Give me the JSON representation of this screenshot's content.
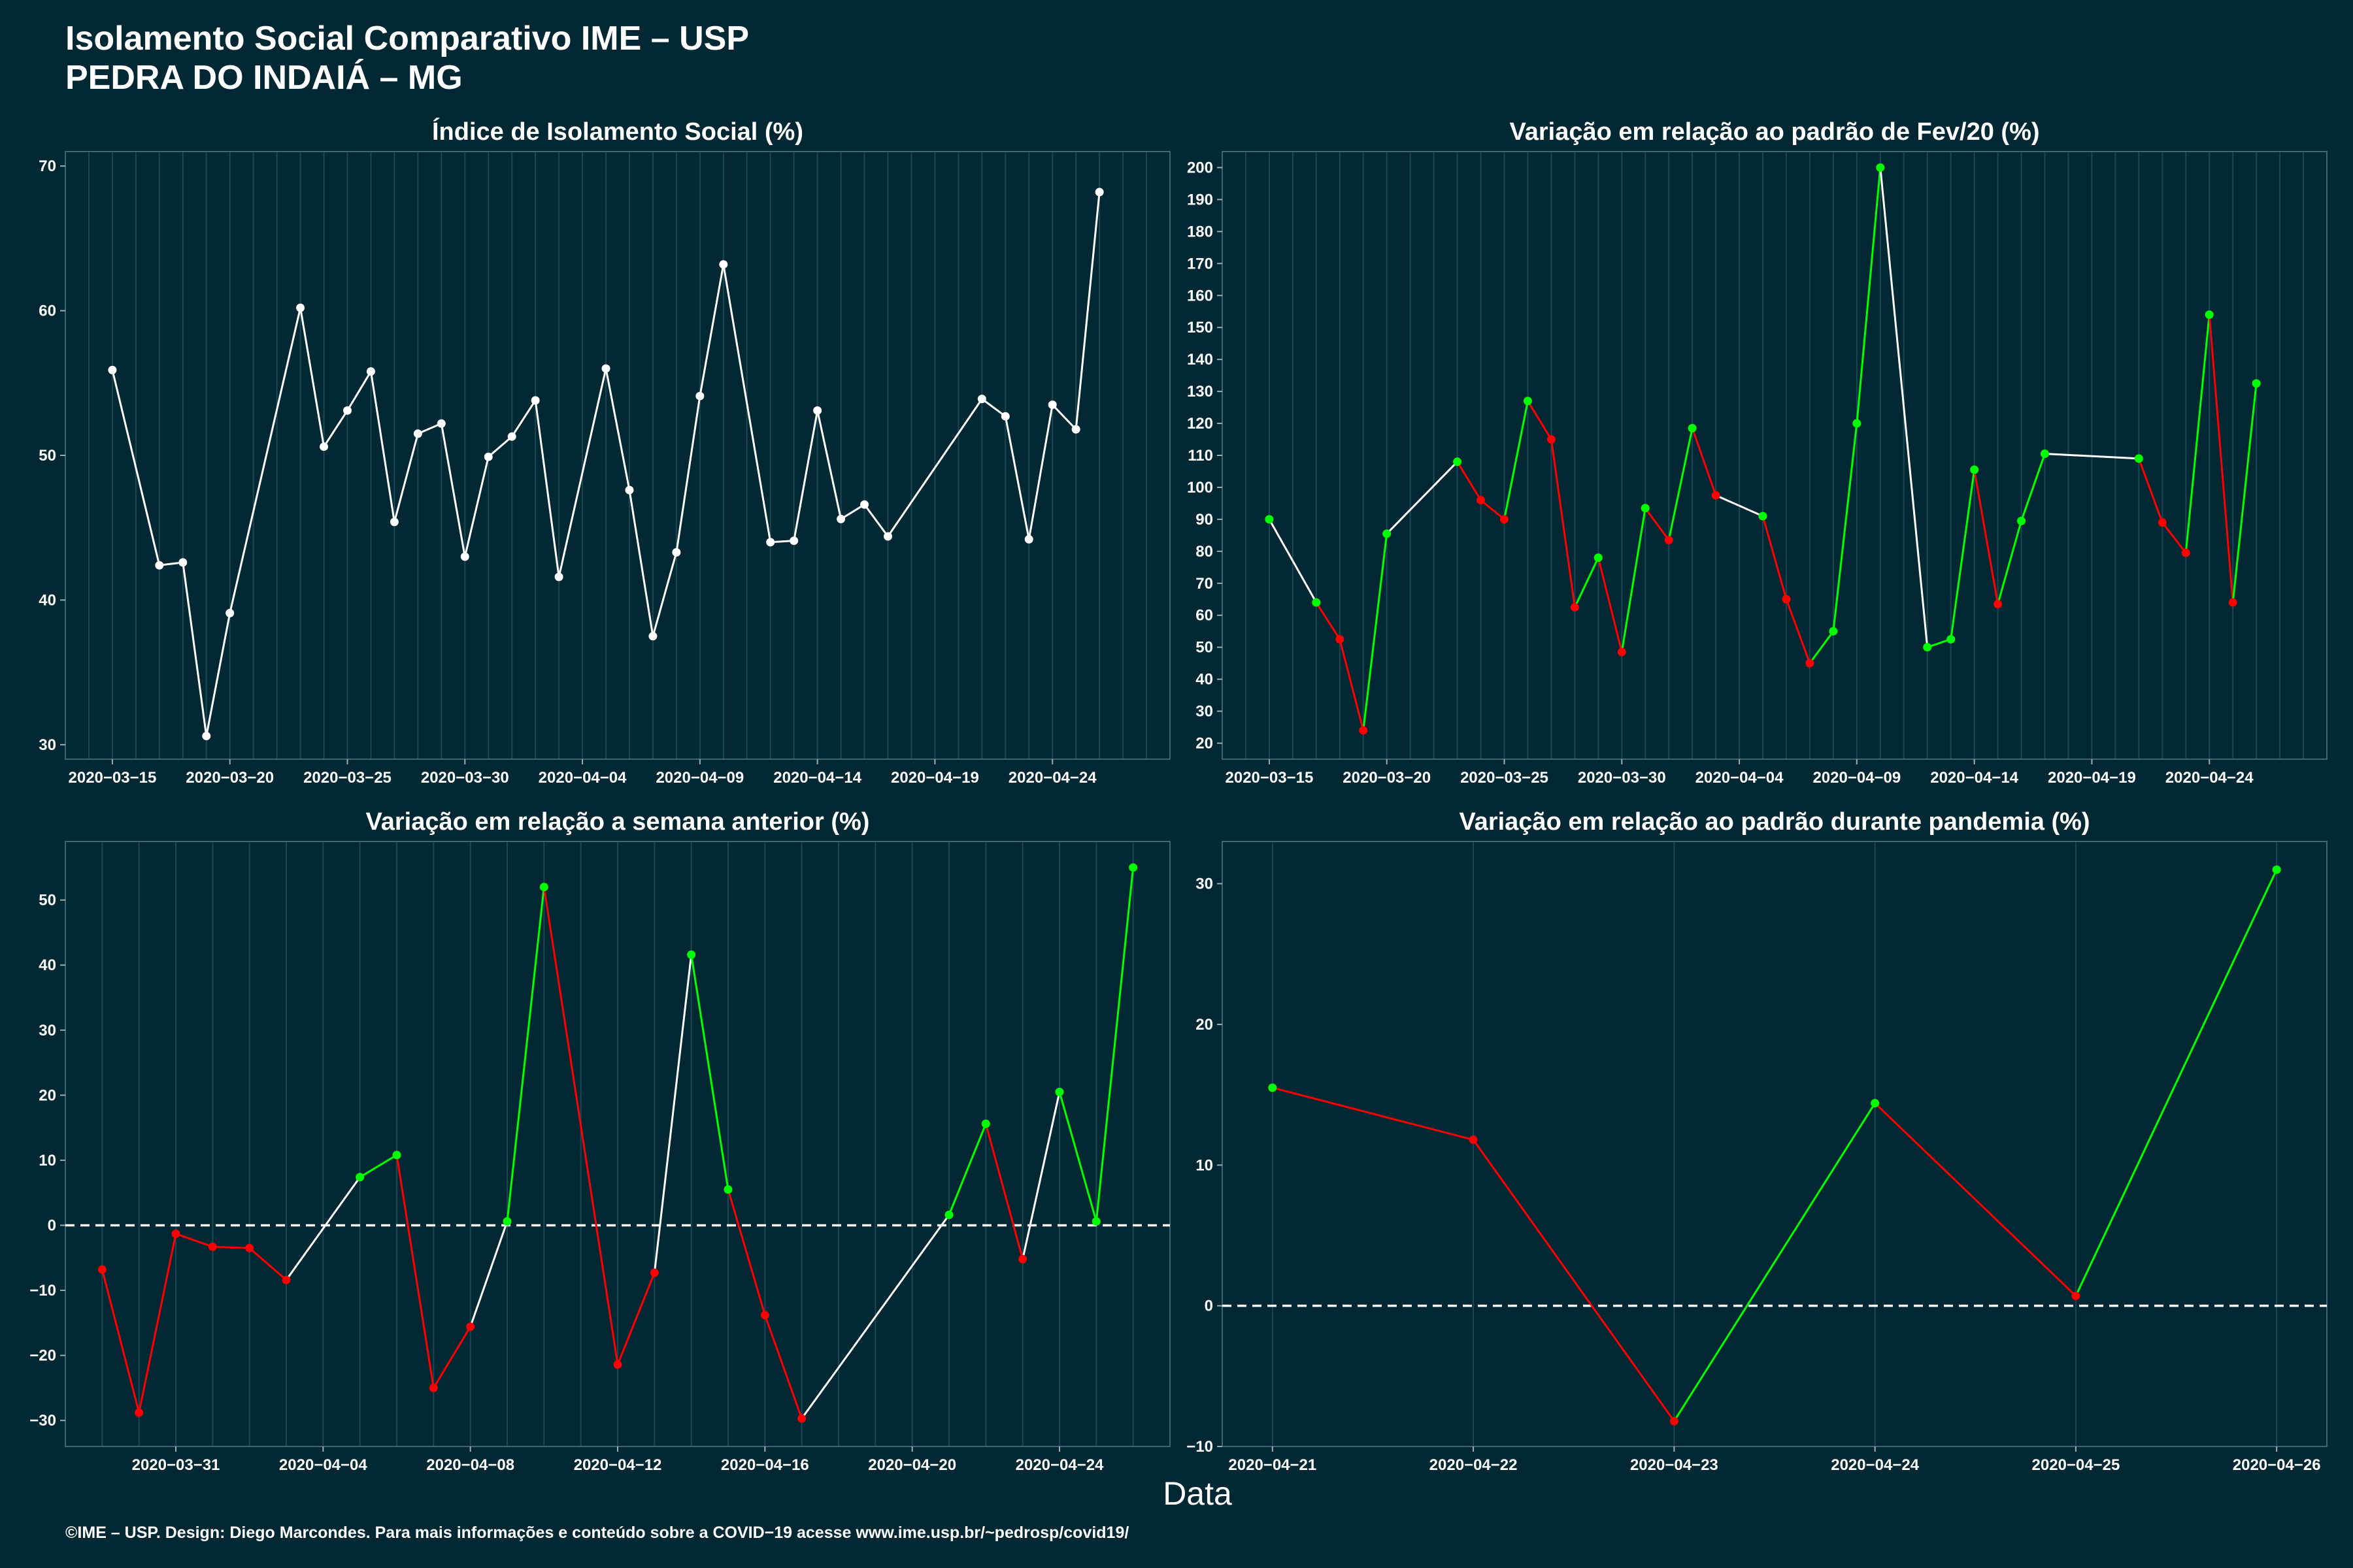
{
  "header": {
    "title_line1": "Isolamento Social Comparativo IME – USP",
    "title_line2": "PEDRA DO INDAIÁ – MG"
  },
  "x_axis_label": "Data",
  "footer": "©IME – USP. Design: Diego Marcondes. Para mais informações e conteúdo sobre a COVID−19 acesse www.ime.usp.br/~pedrosp/covid19/",
  "colors": {
    "background": "#022834",
    "neutral": "#ffffff",
    "positive": "#00ff00",
    "negative": "#ff0000",
    "grid": "#1c4652"
  },
  "chart_data": [
    {
      "id": "isolamento",
      "type": "line",
      "title": "Índice de Isolamento Social (%)",
      "xlabel": "Data",
      "ylabel": "",
      "x_is_date": true,
      "xlim": [
        "2020-03-13",
        "2020-04-29"
      ],
      "ylim": [
        29,
        71
      ],
      "xticks": [
        "2020-03-15",
        "2020-03-20",
        "2020-03-25",
        "2020-03-30",
        "2020-04-04",
        "2020-04-09",
        "2020-04-14",
        "2020-04-19",
        "2020-04-24"
      ],
      "yticks": [
        30,
        40,
        50,
        60,
        70
      ],
      "grid": true,
      "color_mode": "neutral",
      "points": [
        [
          "2020-03-15",
          55.9
        ],
        [
          "2020-03-17",
          42.4
        ],
        [
          "2020-03-18",
          42.6
        ],
        [
          "2020-03-19",
          30.6
        ],
        [
          "2020-03-20",
          39.1
        ],
        [
          "2020-03-23",
          60.2
        ],
        [
          "2020-03-24",
          50.6
        ],
        [
          "2020-03-25",
          53.1
        ],
        [
          "2020-03-26",
          55.8
        ],
        [
          "2020-03-27",
          45.4
        ],
        [
          "2020-03-28",
          51.5
        ],
        [
          "2020-03-29",
          52.2
        ],
        [
          "2020-03-30",
          43.0
        ],
        [
          "2020-03-31",
          49.9
        ],
        [
          "2020-04-01",
          51.3
        ],
        [
          "2020-04-02",
          53.8
        ],
        [
          "2020-04-03",
          41.6
        ],
        [
          "2020-04-05",
          56.0
        ],
        [
          "2020-04-06",
          47.6
        ],
        [
          "2020-04-07",
          37.5
        ],
        [
          "2020-04-08",
          43.3
        ],
        [
          "2020-04-09",
          54.1
        ],
        [
          "2020-04-10",
          63.2
        ],
        [
          "2020-04-12",
          44.0
        ],
        [
          "2020-04-13",
          44.1
        ],
        [
          "2020-04-14",
          53.1
        ],
        [
          "2020-04-15",
          45.6
        ],
        [
          "2020-04-16",
          46.6
        ],
        [
          "2020-04-17",
          44.4
        ],
        [
          "2020-04-21",
          53.9
        ],
        [
          "2020-04-22",
          52.7
        ],
        [
          "2020-04-23",
          44.2
        ],
        [
          "2020-04-24",
          53.5
        ],
        [
          "2020-04-25",
          51.8
        ],
        [
          "2020-04-26",
          68.2
        ]
      ]
    },
    {
      "id": "fev20",
      "type": "line",
      "title": "Variação em relação ao padrão de Fev/20 (%)",
      "xlabel": "Data",
      "ylabel": "",
      "x_is_date": true,
      "xlim": [
        "2020-03-13",
        "2020-04-29"
      ],
      "ylim": [
        15,
        205
      ],
      "xticks": [
        "2020-03-15",
        "2020-03-20",
        "2020-03-25",
        "2020-03-30",
        "2020-04-04",
        "2020-04-09",
        "2020-04-14",
        "2020-04-19",
        "2020-04-24"
      ],
      "yticks": [
        20,
        30,
        40,
        50,
        60,
        70,
        80,
        90,
        100,
        110,
        120,
        130,
        140,
        150,
        160,
        170,
        180,
        190,
        200
      ],
      "grid": true,
      "color_mode": "trend",
      "points": [
        [
          "2020-03-15",
          90
        ],
        [
          "2020-03-17",
          64
        ],
        [
          "2020-03-18",
          52.5
        ],
        [
          "2020-03-19",
          24
        ],
        [
          "2020-03-20",
          85.5
        ],
        [
          "2020-03-23",
          108
        ],
        [
          "2020-03-24",
          96
        ],
        [
          "2020-03-25",
          90
        ],
        [
          "2020-03-26",
          127
        ],
        [
          "2020-03-27",
          115
        ],
        [
          "2020-03-28",
          62.5
        ],
        [
          "2020-03-29",
          78
        ],
        [
          "2020-03-30",
          48.5
        ],
        [
          "2020-03-31",
          93.5
        ],
        [
          "2020-04-01",
          83.5
        ],
        [
          "2020-04-02",
          118.5
        ],
        [
          "2020-04-03",
          97.5
        ],
        [
          "2020-04-05",
          91
        ],
        [
          "2020-04-06",
          65
        ],
        [
          "2020-04-07",
          45
        ],
        [
          "2020-04-08",
          55
        ],
        [
          "2020-04-09",
          120
        ],
        [
          "2020-04-10",
          200
        ],
        [
          "2020-04-12",
          50
        ],
        [
          "2020-04-13",
          52.5
        ],
        [
          "2020-04-14",
          105.5
        ],
        [
          "2020-04-15",
          63.5
        ],
        [
          "2020-04-16",
          89.5
        ],
        [
          "2020-04-17",
          110.5
        ],
        [
          "2020-04-21",
          109
        ],
        [
          "2020-04-22",
          89
        ],
        [
          "2020-04-23",
          79.5
        ],
        [
          "2020-04-24",
          154
        ],
        [
          "2020-04-25",
          64
        ],
        [
          "2020-04-26",
          132.5
        ]
      ]
    },
    {
      "id": "semana",
      "type": "line",
      "title": "Variação em relação a semana anterior (%)",
      "xlabel": "Data",
      "ylabel": "",
      "x_is_date": true,
      "xlim": [
        "2020-03-28",
        "2020-04-27"
      ],
      "ylim": [
        -34,
        59
      ],
      "xticks": [
        "2020-03-31",
        "2020-04-04",
        "2020-04-08",
        "2020-04-12",
        "2020-04-16",
        "2020-04-20",
        "2020-04-24"
      ],
      "yticks": [
        -30,
        -20,
        -10,
        0,
        10,
        20,
        30,
        40,
        50
      ],
      "grid": true,
      "reference_line": 0,
      "color_mode": "sign",
      "points": [
        [
          "2020-03-29",
          -6.8
        ],
        [
          "2020-03-30",
          -28.8
        ],
        [
          "2020-03-31",
          -1.3
        ],
        [
          "2020-04-01",
          -3.3
        ],
        [
          "2020-04-02",
          -3.5
        ],
        [
          "2020-04-03",
          -8.4
        ],
        [
          "2020-04-05",
          7.4
        ],
        [
          "2020-04-06",
          10.8
        ],
        [
          "2020-04-07",
          -25.0
        ],
        [
          "2020-04-08",
          -15.6
        ],
        [
          "2020-04-09",
          0.6
        ],
        [
          "2020-04-10",
          52.0
        ],
        [
          "2020-04-12",
          -21.4
        ],
        [
          "2020-04-13",
          -7.3
        ],
        [
          "2020-04-14",
          41.6
        ],
        [
          "2020-04-15",
          5.5
        ],
        [
          "2020-04-16",
          -13.8
        ],
        [
          "2020-04-17",
          -29.7
        ],
        [
          "2020-04-21",
          1.6
        ],
        [
          "2020-04-22",
          15.6
        ],
        [
          "2020-04-23",
          -5.2
        ],
        [
          "2020-04-24",
          20.5
        ],
        [
          "2020-04-25",
          0.6
        ],
        [
          "2020-04-26",
          55.0
        ]
      ]
    },
    {
      "id": "pandemia",
      "type": "line",
      "title": "Variação em relação ao padrão durante pandemia (%)",
      "xlabel": "Data",
      "ylabel": "",
      "x_is_date": true,
      "xlim": [
        "2020-04-20 18:00",
        "2020-04-26 06:00"
      ],
      "ylim": [
        -10,
        33
      ],
      "xticks": [
        "2020-04-21",
        "2020-04-22",
        "2020-04-23",
        "2020-04-24",
        "2020-04-25",
        "2020-04-26"
      ],
      "yticks": [
        -10,
        0,
        10,
        20,
        30
      ],
      "grid": true,
      "reference_line": 0,
      "color_mode": "trend",
      "points": [
        [
          "2020-04-21",
          15.5
        ],
        [
          "2020-04-22",
          11.8
        ],
        [
          "2020-04-23",
          -8.2
        ],
        [
          "2020-04-24",
          14.4
        ],
        [
          "2020-04-25",
          0.7
        ],
        [
          "2020-04-26",
          31.0
        ]
      ]
    }
  ]
}
